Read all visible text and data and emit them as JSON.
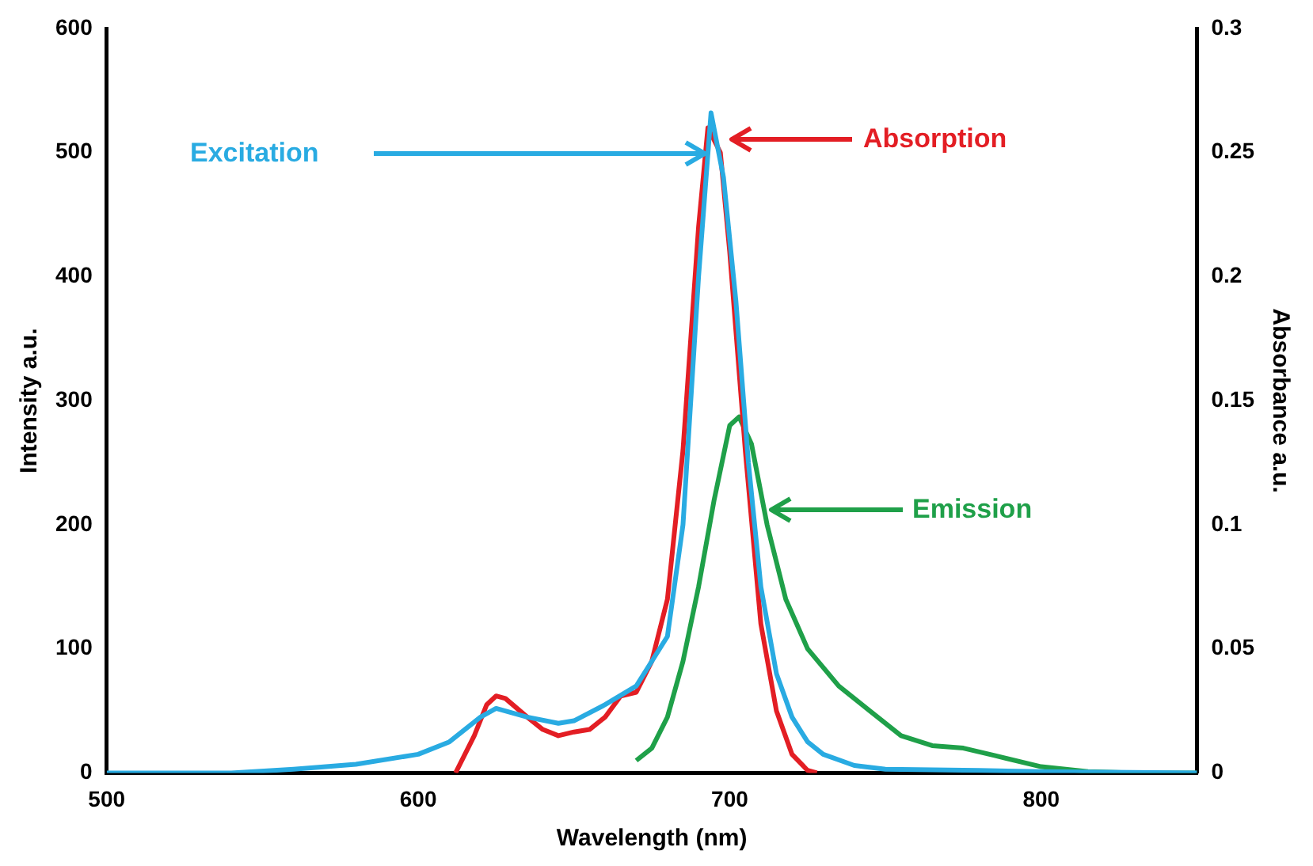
{
  "chart_data": {
    "type": "line",
    "xlabel": "Wavelength (nm)",
    "ylabel": "Intensity a.u.",
    "y2label": "Absorbance a.u.",
    "xlim": [
      500,
      850
    ],
    "xticks": [
      500,
      600,
      700,
      800
    ],
    "ylim": [
      0,
      600
    ],
    "yticks": [
      0,
      100,
      200,
      300,
      400,
      500,
      600
    ],
    "y2lim": [
      0,
      0.3
    ],
    "y2ticks": [
      0,
      0.05,
      0.1,
      0.15,
      0.2,
      0.25,
      0.3
    ],
    "grid": false,
    "legend": false,
    "marker": "none",
    "line_style": "solid",
    "series": [
      {
        "color": "#29abe2",
        "x": [
          500,
          540,
          560,
          580,
          600,
          610,
          620,
          625,
          635,
          645,
          650,
          660,
          670,
          680,
          685,
          690,
          694,
          698,
          702,
          706,
          710,
          715,
          720,
          725,
          730,
          740,
          750,
          780,
          800,
          850
        ],
        "values": [
          0,
          0,
          3,
          7,
          15,
          25,
          45,
          52,
          45,
          40,
          42,
          55,
          70,
          110,
          200,
          400,
          532,
          480,
          380,
          250,
          150,
          80,
          45,
          25,
          15,
          6,
          3,
          2,
          1,
          0
        ]
      },
      {
        "color": "#e31e24",
        "axis": "y2",
        "x": [
          612,
          618,
          622,
          625,
          628,
          635,
          640,
          645,
          650,
          655,
          660,
          665,
          670,
          675,
          680,
          685,
          690,
          693,
          697,
          700,
          705,
          710,
          715,
          720,
          725,
          728
        ],
        "values": [
          0,
          0.015,
          0.0275,
          0.031,
          0.03,
          0.0225,
          0.0175,
          0.015,
          0.0165,
          0.0175,
          0.0225,
          0.031,
          0.0325,
          0.045,
          0.07,
          0.13,
          0.22,
          0.26,
          0.25,
          0.21,
          0.13,
          0.06,
          0.025,
          0.0075,
          0.001,
          0
        ]
      },
      {
        "color": "#1fa049",
        "x": [
          670,
          675,
          680,
          685,
          690,
          695,
          700,
          703,
          707,
          712,
          718,
          725,
          735,
          745,
          755,
          765,
          775,
          785,
          800,
          815,
          830,
          850
        ],
        "values": [
          10,
          20,
          45,
          90,
          150,
          220,
          280,
          287,
          265,
          200,
          140,
          100,
          70,
          50,
          30,
          22,
          20,
          14,
          5,
          1,
          0,
          0
        ]
      }
    ],
    "annotations": [
      "Excitation",
      "Absorption",
      "Emission"
    ]
  }
}
